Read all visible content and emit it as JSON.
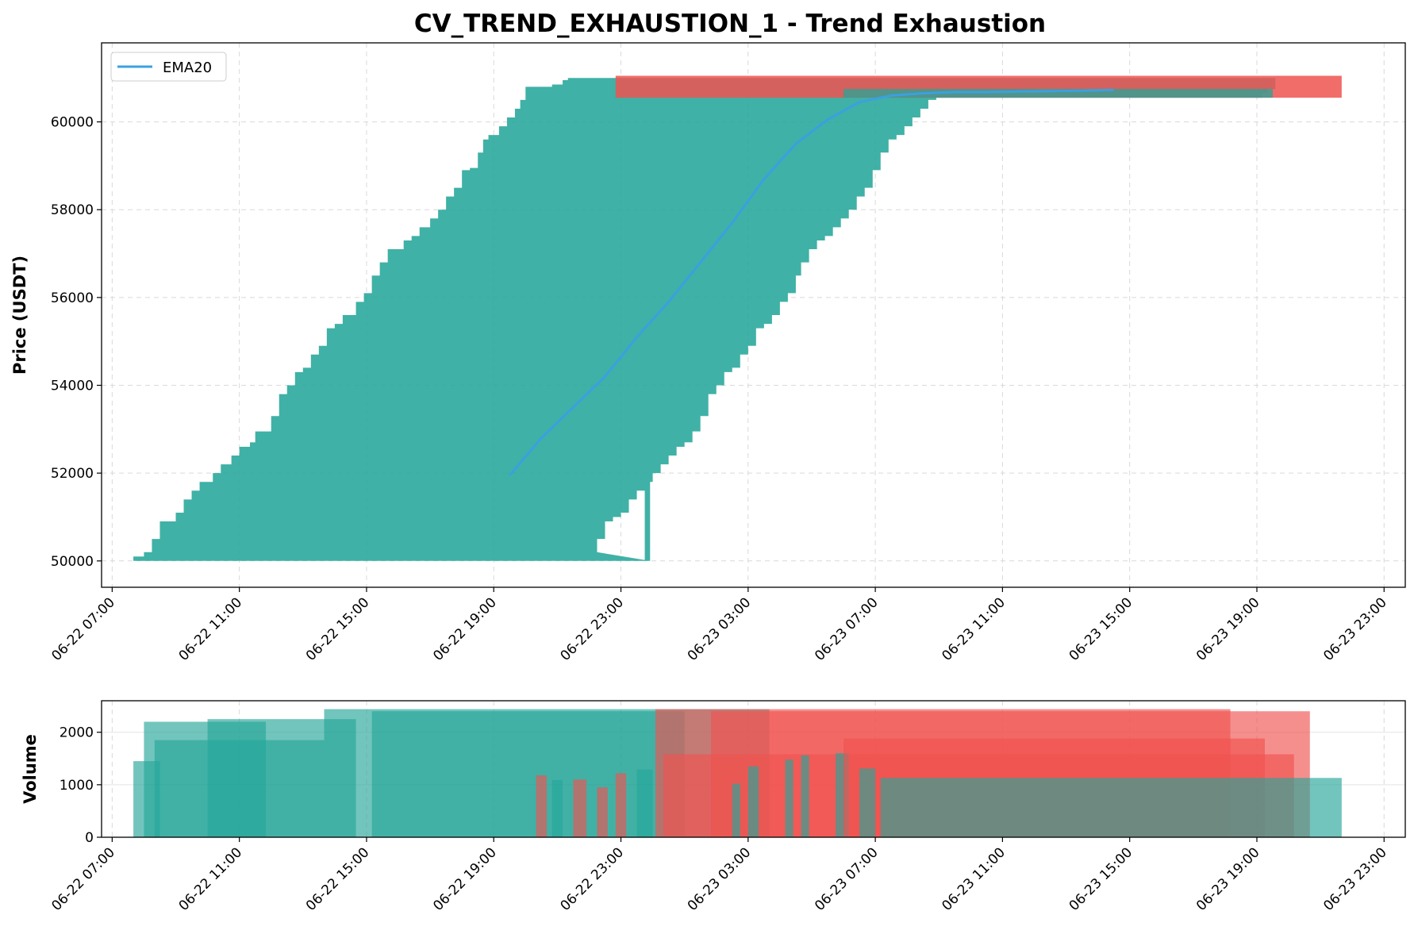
{
  "chart_data": [
    {
      "id": "price",
      "type": "candlestick",
      "title": "CV_TREND_EXHAUSTION_1 - Trend Exhaustion",
      "ylabel": "Price (USDT)",
      "xlim": [
        "06-22 06:40",
        "06-23 23:40"
      ],
      "ylim": [
        49400,
        61800
      ],
      "yticks": [
        50000,
        52000,
        54000,
        56000,
        58000,
        60000
      ],
      "xticks": [
        "06-22 07:00",
        "06-22 11:00",
        "06-22 15:00",
        "06-22 19:00",
        "06-22 23:00",
        "06-23 03:00",
        "06-23 07:00",
        "06-23 11:00",
        "06-23 15:00",
        "06-23 19:00",
        "06-23 23:00"
      ],
      "grid": true,
      "legend": {
        "placement": "top-left",
        "entries": [
          {
            "name": "EMA20",
            "color": "#3aa0e0"
          }
        ]
      },
      "up_color": "#26a69a",
      "down_color": "#ef5350",
      "body_band": {
        "description_values": "step boundaries of the wide green candle bodies: [time, price]",
        "bottom_price": 50000,
        "top_left_edge": [
          [
            "06-22 07:40",
            50100
          ],
          [
            "06-22 08:00",
            50200
          ],
          [
            "06-22 08:15",
            50500
          ],
          [
            "06-22 08:30",
            50900
          ],
          [
            "06-22 09:00",
            51100
          ],
          [
            "06-22 09:15",
            51400
          ],
          [
            "06-22 09:30",
            51600
          ],
          [
            "06-22 09:45",
            51800
          ],
          [
            "06-22 10:10",
            52000
          ],
          [
            "06-22 10:25",
            52200
          ],
          [
            "06-22 10:45",
            52400
          ],
          [
            "06-22 11:00",
            52600
          ],
          [
            "06-22 11:20",
            52700
          ],
          [
            "06-22 11:30",
            52950
          ],
          [
            "06-22 12:00",
            53300
          ],
          [
            "06-22 12:15",
            53800
          ],
          [
            "06-22 12:30",
            54000
          ],
          [
            "06-22 12:45",
            54300
          ],
          [
            "06-22 13:00",
            54400
          ],
          [
            "06-22 13:15",
            54700
          ],
          [
            "06-22 13:30",
            54900
          ],
          [
            "06-22 13:45",
            55300
          ],
          [
            "06-22 14:00",
            55400
          ],
          [
            "06-22 14:15",
            55600
          ],
          [
            "06-22 14:40",
            55900
          ],
          [
            "06-22 14:55",
            56100
          ],
          [
            "06-22 15:10",
            56500
          ],
          [
            "06-22 15:25",
            56800
          ],
          [
            "06-22 15:40",
            57100
          ],
          [
            "06-22 16:10",
            57300
          ],
          [
            "06-22 16:25",
            57400
          ],
          [
            "06-22 16:40",
            57600
          ],
          [
            "06-22 17:00",
            57800
          ],
          [
            "06-22 17:15",
            58000
          ],
          [
            "06-22 17:30",
            58300
          ],
          [
            "06-22 17:45",
            58500
          ],
          [
            "06-22 18:00",
            58900
          ],
          [
            "06-22 18:15",
            58950
          ],
          [
            "06-22 18:30",
            59300
          ],
          [
            "06-22 18:40",
            59600
          ],
          [
            "06-22 18:50",
            59700
          ],
          [
            "06-22 19:10",
            59900
          ],
          [
            "06-22 19:25",
            60100
          ],
          [
            "06-22 19:40",
            60300
          ],
          [
            "06-22 19:50",
            60500
          ],
          [
            "06-22 20:00",
            60800
          ],
          [
            "06-22 20:50",
            60850
          ],
          [
            "06-22 21:10",
            60950
          ],
          [
            "06-22 21:20",
            61000
          ]
        ],
        "bottom_right_edge": [
          [
            "06-22 23:55",
            50000
          ],
          [
            "06-22 22:45",
            50100
          ],
          [
            "06-22 22:15",
            50200
          ],
          [
            "06-22 22:30",
            50500
          ],
          [
            "06-22 22:45",
            50900
          ],
          [
            "06-22 23:00",
            51000
          ],
          [
            "06-22 23:15",
            51100
          ],
          [
            "06-22 23:30",
            51400
          ],
          [
            "06-22 23:45",
            51600
          ],
          [
            "06-23 00:00",
            51800
          ],
          [
            "06-23 00:15",
            52000
          ],
          [
            "06-23 00:30",
            52200
          ],
          [
            "06-23 00:45",
            52400
          ],
          [
            "06-23 01:00",
            52600
          ],
          [
            "06-23 01:15",
            52700
          ],
          [
            "06-23 01:30",
            52950
          ],
          [
            "06-23 01:45",
            53300
          ],
          [
            "06-23 02:00",
            53800
          ],
          [
            "06-23 02:15",
            54000
          ],
          [
            "06-23 02:30",
            54300
          ],
          [
            "06-23 02:45",
            54400
          ],
          [
            "06-23 03:00",
            54700
          ],
          [
            "06-23 03:15",
            54900
          ],
          [
            "06-23 03:30",
            55300
          ],
          [
            "06-23 03:45",
            55400
          ],
          [
            "06-23 04:00",
            55600
          ],
          [
            "06-23 04:15",
            55900
          ],
          [
            "06-23 04:30",
            56100
          ],
          [
            "06-23 04:40",
            56500
          ],
          [
            "06-23 04:55",
            56800
          ],
          [
            "06-23 05:10",
            57100
          ],
          [
            "06-23 05:25",
            57300
          ],
          [
            "06-23 05:40",
            57400
          ],
          [
            "06-23 05:55",
            57600
          ],
          [
            "06-23 06:10",
            57800
          ],
          [
            "06-23 06:25",
            58000
          ],
          [
            "06-23 06:40",
            58300
          ],
          [
            "06-23 06:55",
            58500
          ],
          [
            "06-23 07:10",
            58900
          ],
          [
            "06-23 07:25",
            59300
          ],
          [
            "06-23 07:40",
            59600
          ],
          [
            "06-23 07:55",
            59700
          ],
          [
            "06-23 08:10",
            59900
          ],
          [
            "06-23 08:25",
            60100
          ],
          [
            "06-23 08:40",
            60300
          ],
          [
            "06-23 08:55",
            60500
          ],
          [
            "06-23 10:30",
            60550
          ],
          [
            "06-23 19:10",
            60550
          ],
          [
            "06-23 19:20",
            60650
          ],
          [
            "06-23 19:35",
            60750
          ]
        ]
      },
      "red_band": {
        "top_price": 61050,
        "bottom_price": 60550,
        "start": "06-22 22:50",
        "end": "06-23 21:40"
      },
      "ema20": {
        "name": "EMA20",
        "x": [
          "06-22 19:30",
          "06-22 20:30",
          "06-22 21:30",
          "06-22 22:30",
          "06-22 23:30",
          "06-23 00:30",
          "06-23 01:30",
          "06-23 02:30",
          "06-23 03:30",
          "06-23 04:30",
          "06-23 05:30",
          "06-23 06:30",
          "06-23 07:30",
          "06-23 08:30",
          "06-23 09:30",
          "06-23 10:30",
          "06-23 11:30",
          "06-23 12:30",
          "06-23 13:30",
          "06-23 14:30"
        ],
        "y": [
          51950,
          52800,
          53500,
          54200,
          55100,
          55900,
          56800,
          57700,
          58700,
          59500,
          60050,
          60450,
          60600,
          60650,
          60680,
          60680,
          60690,
          60700,
          60710,
          60730
        ]
      }
    },
    {
      "id": "volume",
      "type": "bar",
      "ylabel": "Volume",
      "ylim": [
        0,
        2600
      ],
      "yticks": [
        0,
        1000,
        2000
      ],
      "xticks": [
        "06-22 07:00",
        "06-22 11:00",
        "06-22 15:00",
        "06-22 19:00",
        "06-22 23:00",
        "06-23 03:00",
        "06-23 07:00",
        "06-23 11:00",
        "06-23 15:00",
        "06-23 19:00",
        "06-23 23:00"
      ],
      "grid": true,
      "bars": [
        {
          "start": "06-22 07:40",
          "end": "06-22 08:30",
          "value": 1450,
          "color": "up"
        },
        {
          "start": "06-22 08:00",
          "end": "06-22 11:50",
          "value": 2200,
          "color": "up"
        },
        {
          "start": "06-22 08:20",
          "end": "06-22 13:40",
          "value": 1850,
          "color": "up"
        },
        {
          "start": "06-22 10:00",
          "end": "06-22 14:40",
          "value": 2250,
          "color": "up"
        },
        {
          "start": "06-22 13:40",
          "end": "06-23 03:40",
          "value": 2440,
          "color": "up"
        },
        {
          "start": "06-22 15:10",
          "end": "06-23 01:00",
          "value": 2400,
          "color": "up"
        },
        {
          "start": "06-22 20:20",
          "end": "06-22 20:40",
          "value": 1180,
          "color": "down"
        },
        {
          "start": "06-22 20:50",
          "end": "06-22 21:10",
          "value": 1090,
          "color": "up"
        },
        {
          "start": "06-22 21:30",
          "end": "06-22 21:55",
          "value": 1100,
          "color": "down"
        },
        {
          "start": "06-22 22:15",
          "end": "06-22 22:35",
          "value": 950,
          "color": "down"
        },
        {
          "start": "06-22 22:50",
          "end": "06-22 23:10",
          "value": 1220,
          "color": "down"
        },
        {
          "start": "06-22 23:30",
          "end": "06-23 00:00",
          "value": 1290,
          "color": "up"
        },
        {
          "start": "06-23 00:05",
          "end": "06-23 18:10",
          "value": 2440,
          "color": "down"
        },
        {
          "start": "06-23 00:20",
          "end": "06-23 20:10",
          "value": 1580,
          "color": "down"
        },
        {
          "start": "06-23 01:50",
          "end": "06-23 20:40",
          "value": 2400,
          "color": "down"
        },
        {
          "start": "06-23 02:30",
          "end": "06-23 02:45",
          "value": 1020,
          "color": "up"
        },
        {
          "start": "06-23 03:00",
          "end": "06-23 03:20",
          "value": 1350,
          "color": "up"
        },
        {
          "start": "06-23 04:10",
          "end": "06-23 04:25",
          "value": 1480,
          "color": "up"
        },
        {
          "start": "06-23 04:40",
          "end": "06-23 04:55",
          "value": 1560,
          "color": "up"
        },
        {
          "start": "06-23 05:45",
          "end": "06-23 06:10",
          "value": 1600,
          "color": "up"
        },
        {
          "start": "06-23 06:00",
          "end": "06-23 19:15",
          "value": 1880,
          "color": "down"
        },
        {
          "start": "06-23 06:30",
          "end": "06-23 07:00",
          "value": 1310,
          "color": "up"
        },
        {
          "start": "06-23 07:10",
          "end": "06-23 21:40",
          "value": 1130,
          "color": "up"
        }
      ]
    }
  ]
}
